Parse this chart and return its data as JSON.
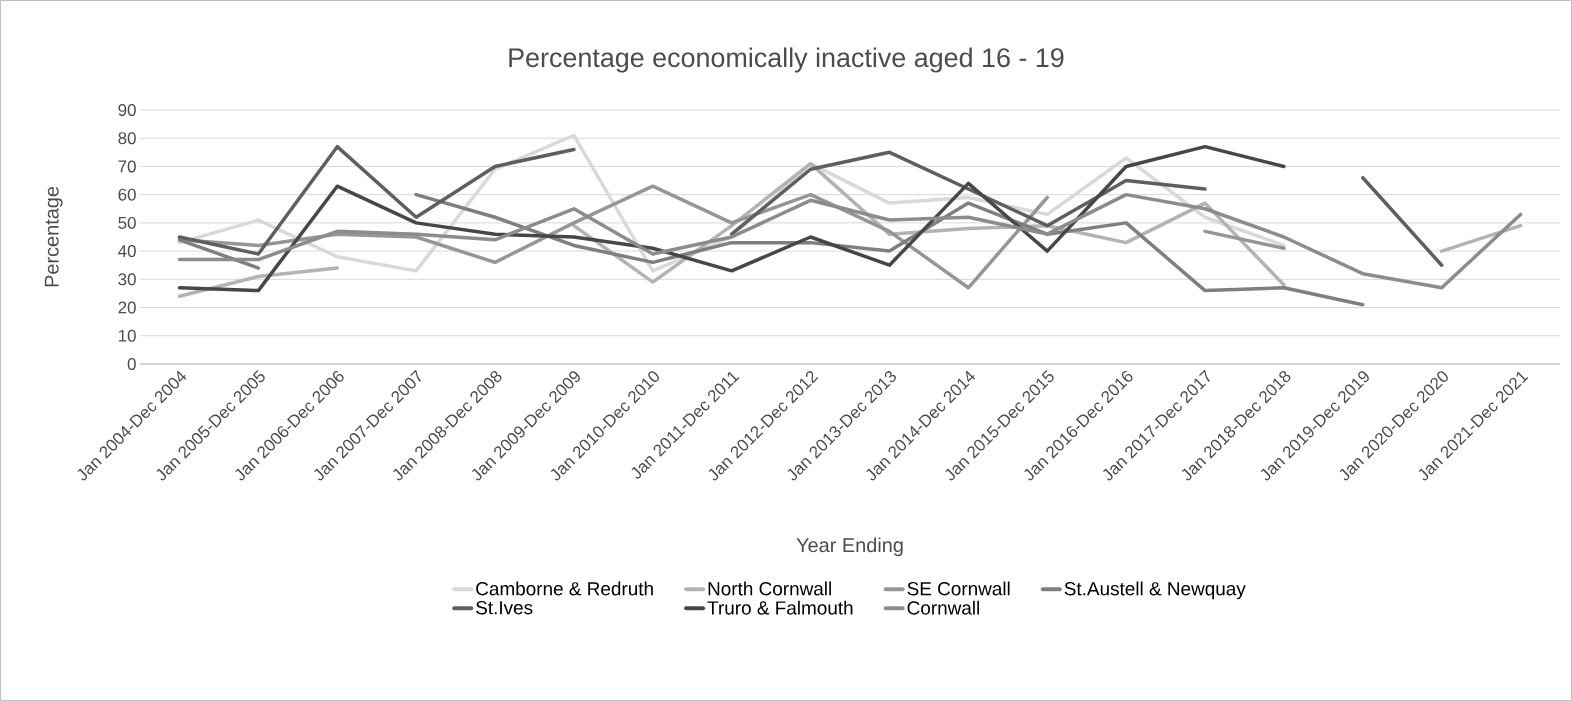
{
  "chart_data": {
    "type": "line",
    "title": "Percentage economically inactive aged 16 - 19",
    "xlabel": "Year Ending",
    "ylabel": "Percentage",
    "categories": [
      "Jan 2004-Dec 2004",
      "Jan 2005-Dec 2005",
      "Jan 2006-Dec 2006",
      "Jan 2007-Dec 2007",
      "Jan 2008-Dec 2008",
      "Jan 2009-Dec 2009",
      "Jan 2010-Dec 2010",
      "Jan 2011-Dec 2011",
      "Jan 2012-Dec 2012",
      "Jan 2013-Dec 2013",
      "Jan 2014-Dec 2014",
      "Jan 2015-Dec 2015",
      "Jan 2016-Dec 2016",
      "Jan 2017-Dec 2017",
      "Jan 2018-Dec 2018",
      "Jan 2019-Dec 2019",
      "Jan 2020-Dec 2020",
      "Jan 2021-Dec 2021"
    ],
    "series": [
      {
        "name": "Camborne & Redruth",
        "color": "#d9d9d9",
        "values": [
          43,
          51,
          38,
          33,
          69,
          81,
          33,
          45,
          71,
          57,
          59,
          53,
          73,
          52,
          42,
          null,
          null,
          null
        ]
      },
      {
        "name": "North Cornwall",
        "color": "#b3b3b3",
        "values": [
          24,
          31,
          34,
          null,
          null,
          49,
          29,
          49,
          71,
          46,
          48,
          49,
          43,
          57,
          28,
          null,
          40,
          49
        ]
      },
      {
        "name": "SE Cornwall",
        "color": "#969696",
        "values": [
          44,
          42,
          46,
          45,
          36,
          50,
          63,
          50,
          60,
          47,
          27,
          59,
          null,
          47,
          41,
          null,
          null,
          null
        ]
      },
      {
        "name": "St.Austell & Newquay",
        "color": "#7f7f7f",
        "values": [
          44,
          34,
          null,
          60,
          52,
          42,
          36,
          43,
          43,
          40,
          57,
          46,
          50,
          26,
          27,
          21,
          null,
          null
        ]
      },
      {
        "name": "St.Ives",
        "color": "#5f5f5f",
        "values": [
          45,
          39,
          77,
          52,
          70,
          76,
          null,
          46,
          69,
          75,
          62,
          49,
          65,
          62,
          null,
          66,
          35,
          null
        ]
      },
      {
        "name": "Truro & Falmouth",
        "color": "#474747",
        "values": [
          27,
          26,
          63,
          50,
          46,
          45,
          41,
          33,
          45,
          35,
          64,
          40,
          70,
          77,
          70,
          null,
          null,
          null
        ]
      },
      {
        "name": "Cornwall",
        "color": "#8c8c8c",
        "values": [
          37,
          37,
          47,
          46,
          44,
          55,
          39,
          45,
          58,
          51,
          52,
          46,
          60,
          55,
          45,
          32,
          27,
          53
        ]
      }
    ],
    "ylim": [
      0,
      90
    ],
    "yticks": [
      0,
      10,
      20,
      30,
      40,
      50,
      60,
      70,
      80,
      90
    ],
    "grid": "y",
    "legend": "bottom",
    "marker": "none",
    "line_style": "solid"
  }
}
